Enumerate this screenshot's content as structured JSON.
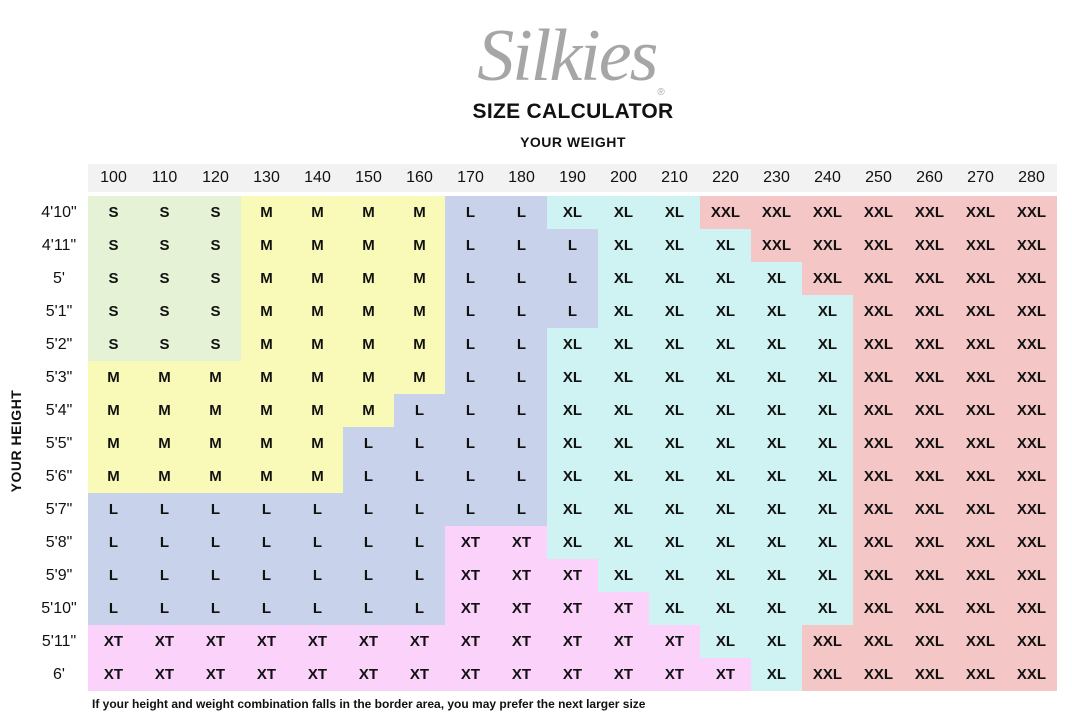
{
  "logo": {
    "text": "Silkies",
    "mark": "®"
  },
  "title": "SIZE CALCULATOR",
  "weight_label": "YOUR WEIGHT",
  "height_label": "YOUR HEIGHT",
  "weights": [
    "100",
    "110",
    "120",
    "130",
    "140",
    "150",
    "160",
    "170",
    "180",
    "190",
    "200",
    "210",
    "220",
    "230",
    "240",
    "250",
    "260",
    "270",
    "280"
  ],
  "heights": [
    "4'10\"",
    "4'11\"",
    "5'",
    "5'1\"",
    "5'2\"",
    "5'3\"",
    "5'4\"",
    "5'5\"",
    "5'6\"",
    "5'7\"",
    "5'8\"",
    "5'9\"",
    "5'10\"",
    "5'11\"",
    "6'"
  ],
  "size_colors": {
    "S": "#e6f2d6",
    "M": "#fafab8",
    "L": "#c8d2ea",
    "XL": "#cff2f2",
    "XXL": "#f5c6c6",
    "XT": "#fad2fa"
  },
  "grid": [
    [
      "S",
      "S",
      "S",
      "M",
      "M",
      "M",
      "M",
      "L",
      "L",
      "XL",
      "XL",
      "XL",
      "XXL",
      "XXL",
      "XXL",
      "XXL",
      "XXL",
      "XXL",
      "XXL"
    ],
    [
      "S",
      "S",
      "S",
      "M",
      "M",
      "M",
      "M",
      "L",
      "L",
      "L",
      "XL",
      "XL",
      "XL",
      "XXL",
      "XXL",
      "XXL",
      "XXL",
      "XXL",
      "XXL"
    ],
    [
      "S",
      "S",
      "S",
      "M",
      "M",
      "M",
      "M",
      "L",
      "L",
      "L",
      "XL",
      "XL",
      "XL",
      "XL",
      "XXL",
      "XXL",
      "XXL",
      "XXL",
      "XXL"
    ],
    [
      "S",
      "S",
      "S",
      "M",
      "M",
      "M",
      "M",
      "L",
      "L",
      "L",
      "XL",
      "XL",
      "XL",
      "XL",
      "XL",
      "XXL",
      "XXL",
      "XXL",
      "XXL"
    ],
    [
      "S",
      "S",
      "S",
      "M",
      "M",
      "M",
      "M",
      "L",
      "L",
      "XL",
      "XL",
      "XL",
      "XL",
      "XL",
      "XL",
      "XXL",
      "XXL",
      "XXL",
      "XXL"
    ],
    [
      "M",
      "M",
      "M",
      "M",
      "M",
      "M",
      "M",
      "L",
      "L",
      "XL",
      "XL",
      "XL",
      "XL",
      "XL",
      "XL",
      "XXL",
      "XXL",
      "XXL",
      "XXL"
    ],
    [
      "M",
      "M",
      "M",
      "M",
      "M",
      "M",
      "L",
      "L",
      "L",
      "XL",
      "XL",
      "XL",
      "XL",
      "XL",
      "XL",
      "XXL",
      "XXL",
      "XXL",
      "XXL"
    ],
    [
      "M",
      "M",
      "M",
      "M",
      "M",
      "L",
      "L",
      "L",
      "L",
      "XL",
      "XL",
      "XL",
      "XL",
      "XL",
      "XL",
      "XXL",
      "XXL",
      "XXL",
      "XXL"
    ],
    [
      "M",
      "M",
      "M",
      "M",
      "M",
      "L",
      "L",
      "L",
      "L",
      "XL",
      "XL",
      "XL",
      "XL",
      "XL",
      "XL",
      "XXL",
      "XXL",
      "XXL",
      "XXL"
    ],
    [
      "L",
      "L",
      "L",
      "L",
      "L",
      "L",
      "L",
      "L",
      "L",
      "XL",
      "XL",
      "XL",
      "XL",
      "XL",
      "XL",
      "XXL",
      "XXL",
      "XXL",
      "XXL"
    ],
    [
      "L",
      "L",
      "L",
      "L",
      "L",
      "L",
      "L",
      "XT",
      "XT",
      "XL",
      "XL",
      "XL",
      "XL",
      "XL",
      "XL",
      "XXL",
      "XXL",
      "XXL",
      "XXL"
    ],
    [
      "L",
      "L",
      "L",
      "L",
      "L",
      "L",
      "L",
      "XT",
      "XT",
      "XT",
      "XL",
      "XL",
      "XL",
      "XL",
      "XL",
      "XXL",
      "XXL",
      "XXL",
      "XXL"
    ],
    [
      "L",
      "L",
      "L",
      "L",
      "L",
      "L",
      "L",
      "XT",
      "XT",
      "XT",
      "XT",
      "XL",
      "XL",
      "XL",
      "XL",
      "XXL",
      "XXL",
      "XXL",
      "XXL"
    ],
    [
      "XT",
      "XT",
      "XT",
      "XT",
      "XT",
      "XT",
      "XT",
      "XT",
      "XT",
      "XT",
      "XT",
      "XT",
      "XL",
      "XL",
      "XXL",
      "XXL",
      "XXL",
      "XXL",
      "XXL"
    ],
    [
      "XT",
      "XT",
      "XT",
      "XT",
      "XT",
      "XT",
      "XT",
      "XT",
      "XT",
      "XT",
      "XT",
      "XT",
      "XT",
      "XL",
      "XXL",
      "XXL",
      "XXL",
      "XXL",
      "XXL"
    ]
  ],
  "note": "If your height and weight combination falls in the border area, you may prefer the next larger size"
}
